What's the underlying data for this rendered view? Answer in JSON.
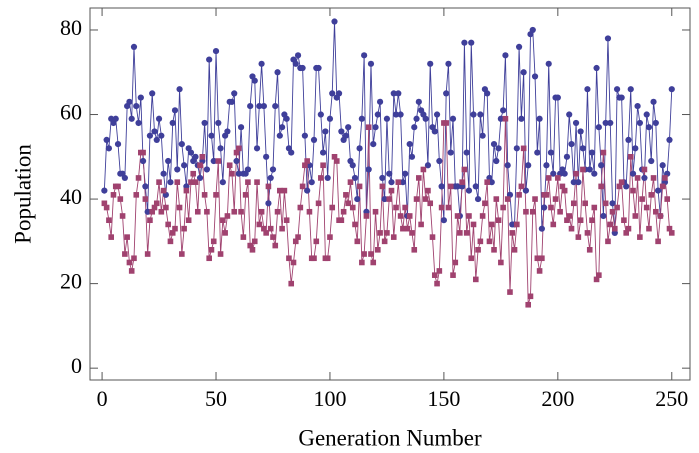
{
  "chart_data": {
    "type": "line",
    "xlabel": "Generation Number",
    "ylabel": "Population",
    "x": [
      1,
      2,
      3,
      4,
      5,
      6,
      7,
      8,
      9,
      10,
      11,
      12,
      13,
      14,
      15,
      16,
      17,
      18,
      19,
      20,
      21,
      22,
      23,
      24,
      25,
      26,
      27,
      28,
      29,
      30,
      31,
      32,
      33,
      34,
      35,
      36,
      37,
      38,
      39,
      40,
      41,
      42,
      43,
      44,
      45,
      46,
      47,
      48,
      49,
      50,
      51,
      52,
      53,
      54,
      55,
      56,
      57,
      58,
      59,
      60,
      61,
      62,
      63,
      64,
      65,
      66,
      67,
      68,
      69,
      70,
      71,
      72,
      73,
      74,
      75,
      76,
      77,
      78,
      79,
      80,
      81,
      82,
      83,
      84,
      85,
      86,
      87,
      88,
      89,
      90,
      91,
      92,
      93,
      94,
      95,
      96,
      97,
      98,
      99,
      100,
      101,
      102,
      103,
      104,
      105,
      106,
      107,
      108,
      109,
      110,
      111,
      112,
      113,
      114,
      115,
      116,
      117,
      118,
      119,
      120,
      121,
      122,
      123,
      124,
      125,
      126,
      127,
      128,
      129,
      130,
      131,
      132,
      133,
      134,
      135,
      136,
      137,
      138,
      139,
      140,
      141,
      142,
      143,
      144,
      145,
      146,
      147,
      148,
      149,
      150,
      151,
      152,
      153,
      154,
      155,
      156,
      157,
      158,
      159,
      160,
      161,
      162,
      163,
      164,
      165,
      166,
      167,
      168,
      169,
      170,
      171,
      172,
      173,
      174,
      175,
      176,
      177,
      178,
      179,
      180,
      181,
      182,
      183,
      184,
      185,
      186,
      187,
      188,
      189,
      190,
      191,
      192,
      193,
      194,
      195,
      196,
      197,
      198,
      199,
      200,
      201,
      202,
      203,
      204,
      205,
      206,
      207,
      208,
      209,
      210,
      211,
      212,
      213,
      214,
      215,
      216,
      217,
      218,
      219,
      220,
      221,
      222,
      223,
      224,
      225,
      226,
      227,
      228,
      229,
      230,
      231,
      232,
      233,
      234,
      235,
      236,
      237,
      238,
      239,
      240,
      241,
      242,
      243,
      244,
      245,
      246,
      247,
      248,
      249,
      250
    ],
    "series": [
      {
        "color": "#3f3f9a",
        "marker": "circle",
        "values": [
          42,
          54,
          52,
          59,
          58,
          59,
          53,
          46,
          46,
          45,
          62,
          63,
          59,
          76,
          62,
          58,
          64,
          49,
          43,
          37,
          55,
          65,
          56,
          54,
          59,
          55,
          46,
          41,
          49,
          44,
          58,
          61,
          47,
          66,
          53,
          48,
          43,
          52,
          51,
          49,
          50,
          48,
          45,
          49,
          58,
          47,
          73,
          55,
          49,
          75,
          58,
          52,
          44,
          55,
          56,
          63,
          63,
          65,
          49,
          46,
          57,
          46,
          46,
          47,
          62,
          69,
          68,
          52,
          62,
          72,
          62,
          50,
          39,
          45,
          47,
          62,
          70,
          55,
          57,
          60,
          59,
          52,
          51,
          73,
          72,
          74,
          71,
          71,
          55,
          42,
          48,
          44,
          54,
          71,
          71,
          60,
          51,
          56,
          45,
          59,
          65,
          82,
          64,
          65,
          56,
          54,
          55,
          57,
          49,
          48,
          45,
          40,
          52,
          59,
          74,
          37,
          47,
          72,
          53,
          57,
          60,
          63,
          45,
          40,
          59,
          46,
          44,
          65,
          60,
          65,
          60,
          44,
          46,
          36,
          53,
          50,
          57,
          59,
          63,
          61,
          60,
          59,
          48,
          72,
          57,
          56,
          60,
          49,
          43,
          35,
          65,
          72,
          51,
          59,
          43,
          43,
          36,
          43,
          77,
          51,
          42,
          77,
          60,
          43,
          40,
          60,
          55,
          66,
          65,
          45,
          44,
          53,
          49,
          52,
          59,
          61,
          74,
          48,
          41,
          34,
          34,
          52,
          76,
          59,
          70,
          42,
          48,
          79,
          80,
          69,
          51,
          59,
          33,
          38,
          48,
          72,
          51,
          46,
          64,
          64,
          46,
          47,
          46,
          50,
          60,
          53,
          44,
          58,
          44,
          56,
          52,
          47,
          66,
          47,
          51,
          46,
          71,
          57,
          48,
          36,
          58,
          78,
          58,
          39,
          32,
          66,
          64,
          64,
          44,
          43,
          54,
          66,
          46,
          52,
          62,
          58,
          47,
          45,
          60,
          57,
          49,
          63,
          58,
          42,
          36,
          48,
          44,
          46,
          54,
          66
        ]
      },
      {
        "color": "#a0426f",
        "marker": "square",
        "values": [
          39,
          38,
          35,
          31,
          41,
          43,
          43,
          40,
          36,
          27,
          31,
          25,
          23,
          26,
          41,
          45,
          51,
          51,
          40,
          27,
          35,
          37,
          38,
          39,
          44,
          37,
          42,
          38,
          34,
          30,
          32,
          33,
          44,
          38,
          27,
          33,
          42,
          35,
          44,
          46,
          44,
          37,
          48,
          50,
          41,
          37,
          26,
          28,
          30,
          41,
          49,
          27,
          35,
          32,
          36,
          48,
          46,
          37,
          51,
          52,
          37,
          31,
          41,
          44,
          29,
          28,
          30,
          44,
          34,
          37,
          33,
          32,
          43,
          33,
          31,
          29,
          37,
          42,
          33,
          42,
          35,
          26,
          20,
          25,
          30,
          31,
          38,
          43,
          48,
          49,
          37,
          26,
          26,
          30,
          39,
          45,
          48,
          26,
          26,
          31,
          38,
          50,
          49,
          35,
          35,
          37,
          41,
          39,
          44,
          38,
          34,
          30,
          43,
          25,
          27,
          36,
          57,
          27,
          25,
          37,
          28,
          32,
          43,
          30,
          32,
          40,
          42,
          31,
          38,
          44,
          36,
          33,
          38,
          33,
          36,
          32,
          28,
          40,
          45,
          34,
          47,
          40,
          42,
          39,
          31,
          22,
          20,
          23,
          38,
          58,
          58,
          38,
          43,
          22,
          25,
          36,
          32,
          44,
          47,
          32,
          36,
          26,
          34,
          21,
          28,
          30,
          36,
          39,
          44,
          30,
          34,
          28,
          40,
          35,
          25,
          38,
          59,
          40,
          18,
          32,
          28,
          34,
          41,
          43,
          52,
          37,
          15,
          17,
          37,
          40,
          26,
          23,
          26,
          41,
          41,
          45,
          38,
          34,
          40,
          45,
          37,
          43,
          42,
          35,
          36,
          33,
          39,
          46,
          31,
          35,
          47,
          39,
          32,
          28,
          35,
          38,
          21,
          22,
          43,
          51,
          39,
          30,
          34,
          37,
          33,
          38,
          43,
          44,
          35,
          32,
          33,
          50,
          42,
          36,
          45,
          31,
          40,
          47,
          38,
          33,
          41,
          45,
          37,
          30,
          36,
          43,
          45,
          40,
          33,
          32
        ]
      }
    ],
    "xlim": [
      -5.3,
      258
    ],
    "ylim": [
      -2.8,
      85.2
    ],
    "xticks": [
      0,
      50,
      100,
      150,
      200,
      250
    ],
    "yticks": [
      0,
      20,
      40,
      60,
      80
    ]
  }
}
